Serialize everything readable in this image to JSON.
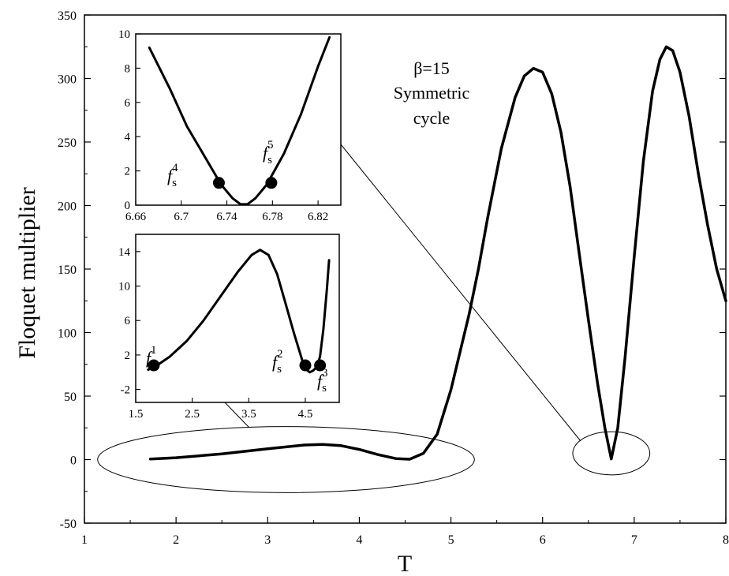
{
  "chart_data": {
    "type": "line",
    "xlabel": "T",
    "ylabel": "Floquet multiplier",
    "xlim": [
      1,
      8
    ],
    "ylim": [
      -50,
      350
    ],
    "xticks": [
      "1",
      "2",
      "3",
      "4",
      "5",
      "6",
      "7",
      "8"
    ],
    "yticks": [
      "-50",
      "0",
      "50",
      "100",
      "150",
      "200",
      "250",
      "300",
      "350"
    ],
    "annotation": [
      "β=15",
      "Symmetric",
      "cycle"
    ],
    "series": [
      {
        "x": [
          1.72,
          2.0,
          2.5,
          3.0,
          3.4,
          3.6,
          3.8,
          4.0,
          4.2,
          4.4,
          4.55,
          4.7,
          4.85,
          5.0,
          5.1,
          5.2,
          5.3,
          5.4,
          5.55,
          5.7,
          5.8,
          5.9,
          6.0,
          6.1,
          6.2,
          6.3,
          6.4,
          6.5,
          6.6,
          6.68,
          6.75,
          6.82,
          6.9,
          7.0,
          7.1,
          7.2,
          7.28,
          7.35,
          7.42,
          7.5,
          7.6,
          7.7,
          7.8,
          7.9,
          8.0
        ],
        "y": [
          0.5,
          1.5,
          4.5,
          8.5,
          11.5,
          12.0,
          11.0,
          8.0,
          4.0,
          0.8,
          0.3,
          5,
          20,
          55,
          85,
          115,
          150,
          190,
          245,
          285,
          302,
          308,
          305,
          288,
          258,
          215,
          162,
          110,
          60,
          25,
          0.5,
          25,
          80,
          160,
          235,
          290,
          315,
          325,
          322,
          305,
          270,
          225,
          185,
          150,
          125
        ]
      }
    ],
    "ellipses": [
      {
        "cx": 3.2,
        "cy": 0,
        "rx": 2.2,
        "ry": 26
      },
      {
        "cx": 6.75,
        "cy": 5,
        "rx": 0.45,
        "ry": 17
      }
    ],
    "insets": [
      {
        "id": "upper",
        "xlim": [
          6.66,
          6.84
        ],
        "ylim": [
          0,
          10
        ],
        "xticks": [
          6.66,
          6.7,
          6.74,
          6.78,
          6.82
        ],
        "xtick_labels": [
          "6.66",
          "6.7",
          "6.74",
          "6.78",
          "6.82"
        ],
        "yticks": [
          0,
          2,
          4,
          6,
          8,
          10
        ],
        "ytick_labels": [
          "0",
          "2",
          "4",
          "6",
          "8",
          "10"
        ],
        "x": [
          6.672,
          6.69,
          6.705,
          6.72,
          6.735,
          6.745,
          6.752,
          6.758,
          6.765,
          6.775,
          6.79,
          6.805,
          6.82,
          6.83
        ],
        "y": [
          9.2,
          6.8,
          4.6,
          2.9,
          1.2,
          0.4,
          0.05,
          0.05,
          0.4,
          1.2,
          3.0,
          5.3,
          8.1,
          9.8
        ],
        "points": [
          {
            "x": 6.733,
            "y": 1.3
          },
          {
            "x": 6.779,
            "y": 1.3
          }
        ],
        "labels": [
          {
            "base": "f",
            "sub": "s",
            "sup": "4"
          },
          {
            "base": "f",
            "sub": "s",
            "sup": "5"
          }
        ]
      },
      {
        "id": "lower",
        "xlim": [
          1.5,
          5.1
        ],
        "ylim": [
          -3.5,
          16
        ],
        "xticks": [
          1.5,
          2.5,
          3.5,
          4.5
        ],
        "xtick_labels": [
          "1.5",
          "2.5",
          "3.5",
          "4.5"
        ],
        "yticks": [
          -2,
          2,
          6,
          10,
          14
        ],
        "ytick_labels": [
          "-2",
          "2",
          "6",
          "10",
          "14"
        ],
        "x": [
          1.72,
          1.9,
          2.1,
          2.4,
          2.7,
          3.0,
          3.3,
          3.55,
          3.7,
          3.85,
          4.0,
          4.15,
          4.3,
          4.45,
          4.52,
          4.58,
          4.64,
          4.7,
          4.76,
          4.82,
          4.88,
          4.92
        ],
        "y": [
          0.3,
          0.9,
          1.8,
          3.6,
          6.0,
          8.8,
          11.6,
          13.6,
          14.2,
          13.6,
          11.4,
          8.0,
          4.5,
          1.3,
          0.3,
          0.0,
          0.2,
          0.6,
          1.8,
          5.0,
          9.5,
          13.0
        ],
        "points": [
          {
            "x": 1.82,
            "y": 0.8
          },
          {
            "x": 4.5,
            "y": 0.8
          },
          {
            "x": 4.76,
            "y": 0.8
          }
        ],
        "labels": [
          {
            "base": "f",
            "sub": "s",
            "sup": "1"
          },
          {
            "base": "f",
            "sub": "s",
            "sup": "2"
          },
          {
            "base": "f",
            "sub": "s",
            "sup": "3"
          }
        ]
      }
    ]
  }
}
